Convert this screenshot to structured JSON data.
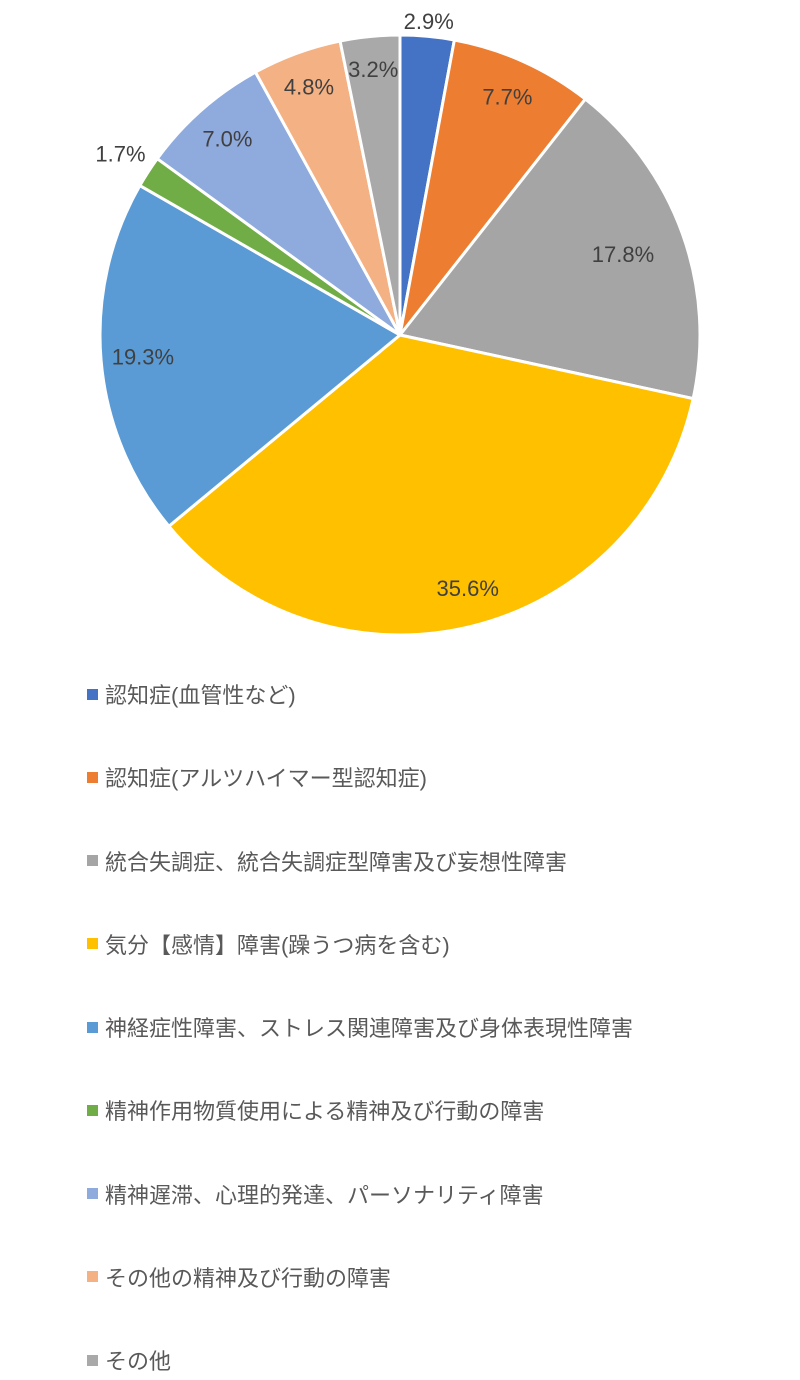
{
  "page": {
    "background": "#FFFFFF"
  },
  "chart_data": {
    "type": "pie",
    "title": "",
    "unit": "%",
    "start_angle_deg": 0,
    "direction": "clockwise",
    "data_label_color": "#404040",
    "slice_border_color": "#FFFFFF",
    "legend": {
      "position": "bottom-left",
      "orientation": "vertical",
      "text_color": "#595959"
    },
    "slices": [
      {
        "label": "認知症(血管性など)",
        "value": 2.9,
        "display": "2.9%",
        "color": "#4472C4",
        "label_placement": "outside",
        "label_r": 1.05
      },
      {
        "label": "認知症(アルツハイマー型認知症)",
        "value": 7.7,
        "display": "7.7%",
        "color": "#ED7D31",
        "label_placement": "inside",
        "label_r": 0.87
      },
      {
        "label": "統合失調症、統合失調症型障害及び妄想性障害",
        "value": 17.8,
        "display": "17.8%",
        "color": "#A5A5A5",
        "label_placement": "inside",
        "label_r": 0.79
      },
      {
        "label": "気分【感情】障害(躁うつ病を含む)",
        "value": 35.6,
        "display": "35.6%",
        "color": "#FFC000",
        "label_placement": "inside",
        "label_r": 0.87,
        "label_dx": 6
      },
      {
        "label": "神経症性障害、ストレス関連障害及び身体表現性障害",
        "value": 19.3,
        "display": "19.3%",
        "color": "#5B9BD5",
        "label_placement": "inside",
        "label_r": 0.86
      },
      {
        "label": "精神作用物質使用による精神及び行動の障害",
        "value": 1.7,
        "display": "1.7%",
        "color": "#70AD47",
        "label_placement": "outside",
        "label_r": 1.11
      },
      {
        "label": "精神遅滞、心理的発達、パーソナリティ障害",
        "value": 7.0,
        "display": "7.0%",
        "color": "#8FAADC",
        "label_placement": "inside",
        "label_r": 0.87
      },
      {
        "label": "その他の精神及び行動の障害",
        "value": 4.8,
        "display": "4.8%",
        "color": "#F4B183",
        "label_placement": "inside",
        "label_r": 0.88
      },
      {
        "label": "その他",
        "value": 3.2,
        "display": "3.2%",
        "color": "#A9A9A9",
        "label_placement": "inside",
        "label_r": 0.89
      }
    ]
  }
}
